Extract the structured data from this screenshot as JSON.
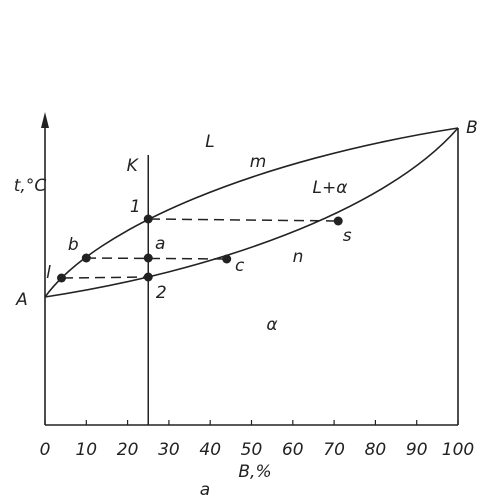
{
  "diagram": {
    "y_axis_label": "t,°C",
    "x_axis_label": "B,%",
    "caption": "a",
    "xlim": [
      0,
      100
    ],
    "xticks": [
      0,
      10,
      20,
      30,
      40,
      50,
      60,
      70,
      80,
      90,
      100
    ],
    "ends": [
      "A",
      "B"
    ],
    "regions": [
      "L",
      "L+α",
      "α"
    ],
    "curves": [
      "m",
      "n"
    ],
    "alloy_line": {
      "label": "K",
      "x": 25
    },
    "points": [
      {
        "label": "1",
        "x": 25
      },
      {
        "label": "b",
        "x": 10
      },
      {
        "label": "l",
        "x": 4
      },
      {
        "label": "a",
        "x": 25
      },
      {
        "label": "2",
        "x": 25
      },
      {
        "label": "c",
        "x": 44
      },
      {
        "label": "s",
        "x": 71
      }
    ]
  }
}
